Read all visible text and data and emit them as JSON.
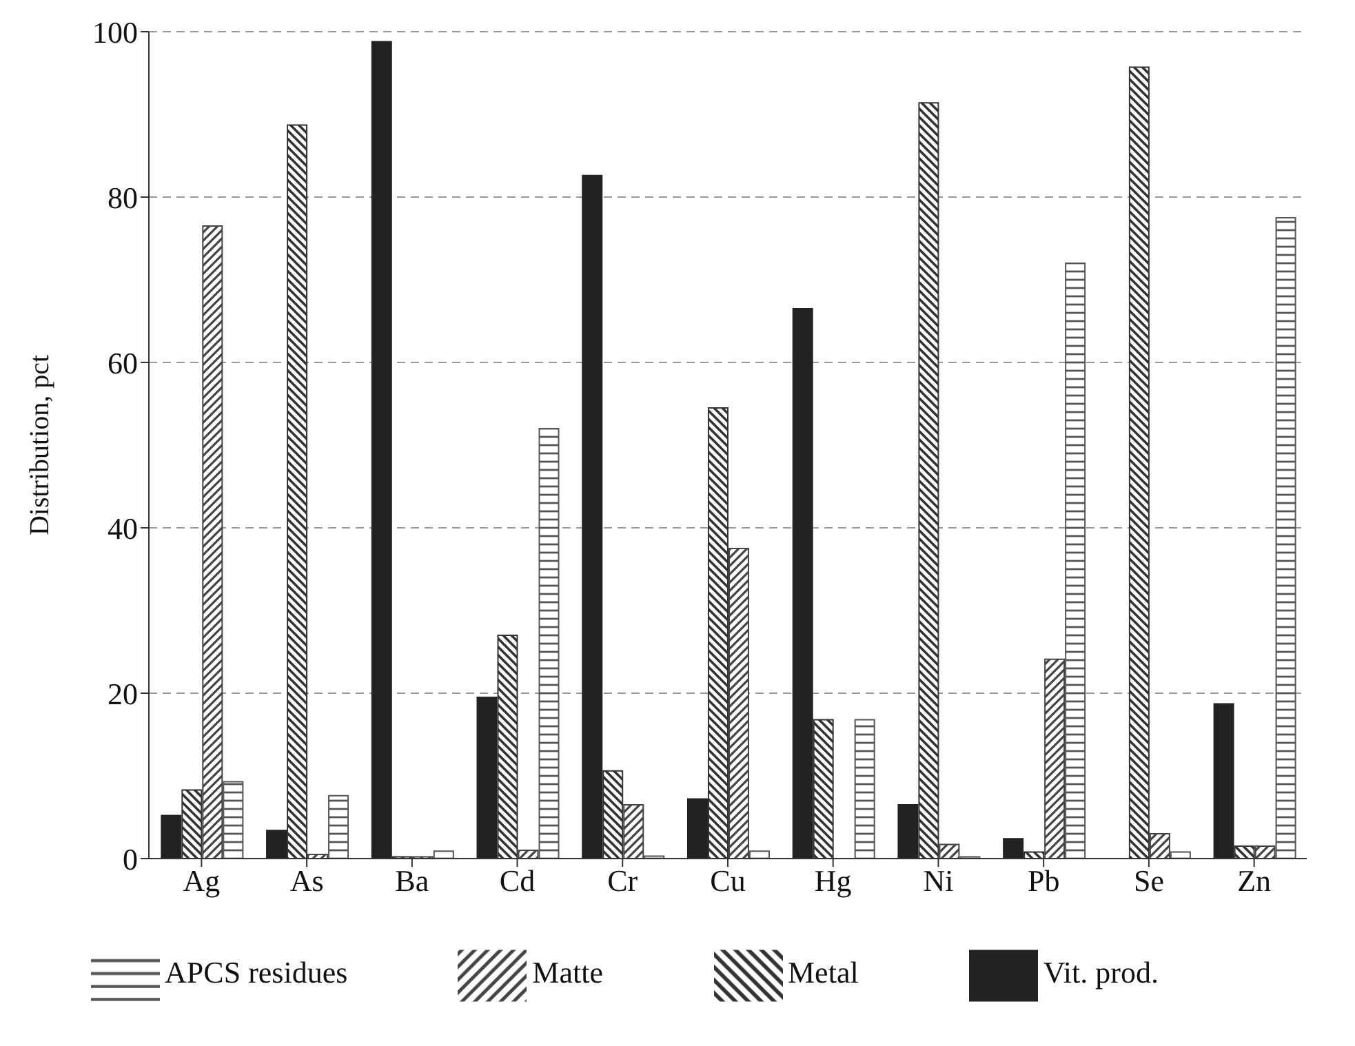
{
  "chart_data": {
    "type": "bar",
    "ylabel": "Distribution, pct",
    "categories": [
      "Ag",
      "As",
      "Ba",
      "Cd",
      "Cr",
      "Cu",
      "Hg",
      "Ni",
      "Pb",
      "Se",
      "Zn"
    ],
    "series": [
      {
        "name": "Vit. prod.",
        "color": "#222222",
        "values": [
          5.2,
          3.4,
          98.8,
          19.5,
          82.6,
          7.2,
          66.5,
          6.5,
          2.4,
          0,
          18.7
        ]
      },
      {
        "name": "Metal",
        "color": "#333333",
        "values": [
          8.3,
          88.7,
          0.2,
          27,
          10.6,
          54.5,
          16.8,
          91.4,
          0.8,
          95.7,
          1.5
        ]
      },
      {
        "name": "Matte",
        "color": "#444444",
        "values": [
          76.5,
          0.5,
          0.2,
          1,
          6.5,
          37.5,
          0,
          1.7,
          24.1,
          3,
          1.5
        ]
      },
      {
        "name": "APCS residues",
        "color": "#555555",
        "values": [
          9.3,
          7.6,
          0.9,
          52,
          0.3,
          0.9,
          16.8,
          0.2,
          72,
          0.8,
          77.5
        ]
      }
    ],
    "ylim": [
      0,
      100
    ],
    "yticks": [
      0,
      20,
      40,
      60,
      80,
      100
    ],
    "grid": "y",
    "legend": "bottom"
  }
}
